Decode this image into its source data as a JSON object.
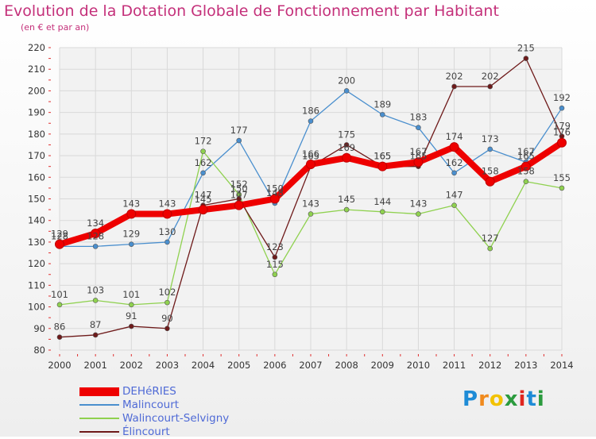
{
  "header": {
    "title": "Evolution de la Dotation Globale de Fonctionnement par Habitant",
    "subtitle": "(en € et par an)"
  },
  "logo": {
    "letters": [
      "P",
      "r",
      "o",
      "x",
      "i",
      "t",
      "i"
    ],
    "colors": [
      "#1e8bd6",
      "#f08a1d",
      "#f2c200",
      "#2b9b3e",
      "#e0261f",
      "#1e8bd6",
      "#2b9b3e"
    ]
  },
  "chart_data": {
    "type": "line",
    "title": "Evolution de la Dotation Globale de Fonctionnement par Habitant",
    "subtitle": "(en € et par an)",
    "categories": [
      "2000",
      "2001",
      "2002",
      "2003",
      "2004",
      "2005",
      "2006",
      "2007",
      "2008",
      "2009",
      "2010",
      "2011",
      "2012",
      "2013",
      "2014"
    ],
    "ylim": [
      80,
      220
    ],
    "yticks": [
      80,
      90,
      100,
      110,
      120,
      130,
      140,
      150,
      160,
      170,
      180,
      190,
      200,
      210,
      220
    ],
    "grid": true,
    "legend_position": "bottom-left",
    "series": [
      {
        "name": "Malincourt",
        "color": "#4a8fce",
        "values": [
          128,
          128,
          129,
          130,
          162,
          177,
          148,
          186,
          200,
          189,
          183,
          162,
          173,
          167,
          192
        ],
        "labels": [
          "128",
          "128",
          "129",
          "130",
          "162",
          "177",
          "148",
          "186",
          "200",
          "189",
          "183",
          "162",
          "173",
          "167",
          "192"
        ]
      },
      {
        "name": "Walincourt-Selvigny",
        "color": "#8fd14f",
        "values": [
          101,
          103,
          101,
          102,
          172,
          152,
          115,
          143,
          145,
          144,
          143,
          147,
          127,
          158,
          155
        ],
        "labels": [
          "101",
          "103",
          "101",
          "102",
          "172",
          "152",
          "115",
          "143",
          "145",
          "144",
          "143",
          "147",
          "127",
          "158",
          "155"
        ]
      },
      {
        "name": "Élincourt",
        "color": "#6e1a1a",
        "values": [
          86,
          87,
          91,
          90,
          147,
          150,
          123,
          165,
          175,
          165,
          165,
          202,
          202,
          215,
          179
        ],
        "labels": [
          "86",
          "87",
          "91",
          "90",
          "147",
          "150",
          "123",
          "165",
          "175",
          "165",
          "165",
          "202",
          "202",
          "215",
          "179"
        ]
      },
      {
        "name": "DEHéRIES",
        "color": "#ee0000",
        "values": [
          129,
          134,
          143,
          143,
          145,
          147,
          150,
          166,
          169,
          165,
          167,
          174,
          158,
          165,
          176
        ],
        "labels": [
          "129",
          "134",
          "143",
          "143",
          "145",
          "147",
          "150",
          "166",
          "169",
          "165",
          "167",
          "174",
          "158",
          "165",
          "176"
        ]
      }
    ],
    "legend": [
      {
        "name": "DEHéRIES",
        "color": "#ee0000"
      },
      {
        "name": "Malincourt",
        "color": "#4a8fce"
      },
      {
        "name": "Walincourt-Selvigny",
        "color": "#8fd14f"
      },
      {
        "name": "Élincourt",
        "color": "#6e1a1a"
      }
    ]
  }
}
